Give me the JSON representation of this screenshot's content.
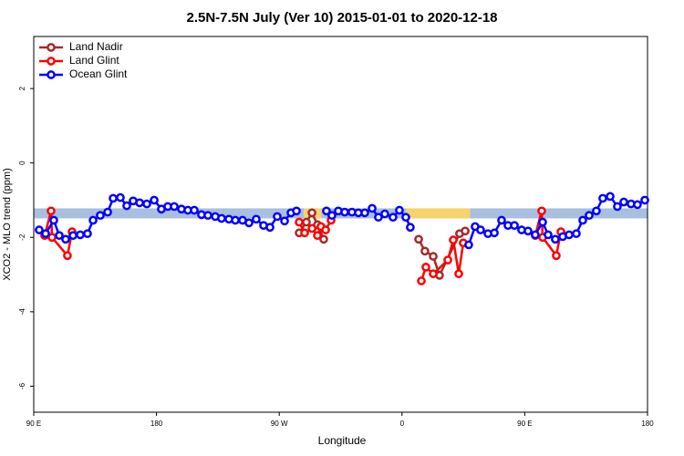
{
  "chart_data": {
    "type": "line",
    "title": "2.5N-7.5N July (Ver 10)   2015-01-01 to 2020-12-18",
    "x_label": "Longitude",
    "y_label": "XCO2 - MLO trend (ppm)",
    "xlim": [
      90,
      540
    ],
    "xticks": [
      {
        "value": 90,
        "label": "90 E"
      },
      180,
      {
        "value": 270,
        "label": "90 W"
      },
      {
        "value": 360,
        "label": "0"
      },
      {
        "value": 450,
        "label": "90 E"
      },
      {
        "value": 540,
        "label": "180"
      }
    ],
    "ylim": [
      -6.7,
      3.4
    ],
    "yticks": [
      2,
      0,
      -2,
      -4,
      -6
    ],
    "legend": "top-left",
    "background_band": {
      "ylim": [
        -1.49,
        -1.22
      ],
      "color": "#a8bfdf",
      "highlights": [
        [
          288,
          301
        ],
        [
          363,
          410
        ]
      ],
      "highlight_color": "#f7d36e"
    },
    "series": [
      {
        "name": "Land Nadir",
        "color": "#a52a2a",
        "x": [
          284.6,
          289.9,
          294.0,
          298.0,
          302.6,
          null,
          372.2,
          376.8,
          382.9,
          387.5,
          402.2,
          406.3
        ],
        "values": [
          -1.88,
          -1.59,
          -1.34,
          -1.66,
          -2.05,
          null,
          -2.05,
          -2.37,
          -2.51,
          -3.02,
          -1.9,
          -1.83
        ]
      },
      {
        "name": "Land Glint",
        "color": "#ff0000",
        "x": [
          98.0,
          102.7,
          103.4,
          114.7,
          118.1,
          null,
          284.6,
          288.6,
          294.0,
          298.0,
          300.6,
          304.0,
          308.0,
          null,
          374.2,
          377.5,
          382.9,
          393.6,
          397.6,
          401.6,
          404.9,
          null,
          457.7,
          462.4,
          463.1,
          473.1,
          476.5
        ],
        "values": [
          -1.95,
          -1.29,
          -2.0,
          -2.49,
          -1.85,
          null,
          -1.59,
          -1.88,
          -1.76,
          -1.95,
          -1.71,
          -1.8,
          -1.54,
          null,
          -3.17,
          -2.8,
          -2.98,
          -2.61,
          -2.07,
          -2.98,
          -2.15,
          null,
          -1.95,
          -1.29,
          -2.0,
          -2.49,
          -1.85
        ]
      },
      {
        "name": "Ocean Glint",
        "color": "#0000ff",
        "x": [
          94.0,
          98.7,
          104.7,
          108.7,
          113.4,
          118.8,
          124.1,
          129.4,
          133.5,
          138.8,
          144.2,
          148.2,
          153.5,
          158.2,
          162.9,
          167.6,
          172.9,
          178.3,
          183.6,
          188.3,
          193.0,
          198.3,
          203.0,
          207.7,
          213.0,
          217.7,
          223.1,
          227.7,
          233.1,
          237.8,
          243.1,
          247.8,
          253.1,
          258.5,
          263.2,
          268.5,
          273.9,
          278.6,
          282.6,
          null,
          304.6,
          308.6,
          313.3,
          318.0,
          323.3,
          328.0,
          332.7,
          338.1,
          342.7,
          347.4,
          353.4,
          358.1,
          362.8,
          366.1,
          null,
          408.9,
          413.6,
          417.6,
          423.0,
          427.7,
          433.0,
          437.7,
          442.4,
          447.7,
          452.4,
          457.7,
          463.1,
          467.1,
          472.4,
          477.8,
          482.5,
          487.8,
          492.5,
          497.2,
          502.5,
          507.2,
          512.6,
          517.9,
          522.6,
          527.9,
          532.6,
          538.0
        ],
        "values": [
          -1.8,
          -1.9,
          -1.54,
          -1.95,
          -2.05,
          -1.95,
          -1.93,
          -1.9,
          -1.54,
          -1.41,
          -1.32,
          -0.95,
          -0.93,
          -1.15,
          -1.02,
          -1.07,
          -1.1,
          -1.0,
          -1.24,
          -1.17,
          -1.17,
          -1.24,
          -1.27,
          -1.27,
          -1.39,
          -1.41,
          -1.44,
          -1.49,
          -1.51,
          -1.54,
          -1.54,
          -1.61,
          -1.51,
          -1.68,
          -1.73,
          -1.44,
          -1.56,
          -1.34,
          -1.29,
          null,
          -1.29,
          -1.41,
          -1.29,
          -1.32,
          -1.32,
          -1.34,
          -1.34,
          -1.22,
          -1.46,
          -1.37,
          -1.46,
          -1.27,
          -1.46,
          -1.73,
          null,
          -2.2,
          -1.71,
          -1.8,
          -1.9,
          -1.88,
          -1.54,
          -1.68,
          -1.68,
          -1.8,
          -1.83,
          -1.93,
          -1.59,
          -1.93,
          -2.05,
          -1.98,
          -1.93,
          -1.9,
          -1.54,
          -1.41,
          -1.29,
          -0.95,
          -0.9,
          -1.17,
          -1.05,
          -1.1,
          -1.12,
          -1.0
        ]
      }
    ]
  }
}
